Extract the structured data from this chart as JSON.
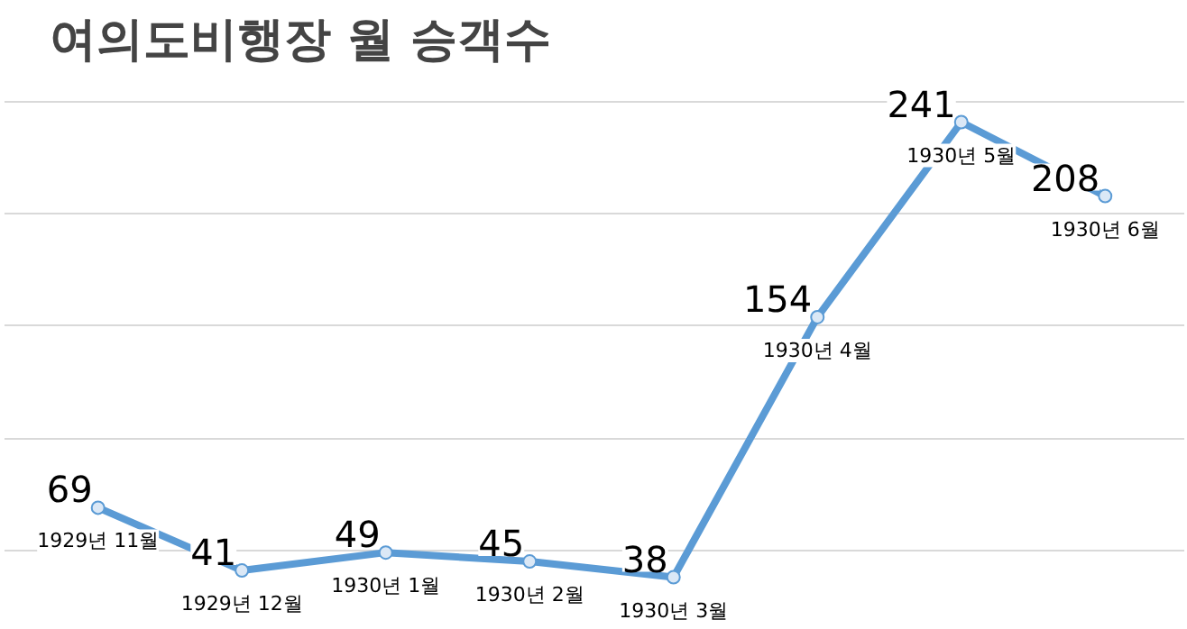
{
  "chart_data": {
    "type": "line",
    "title": "여의도비행장 월 승객수",
    "categories": [
      "1929년 11월",
      "1929년 12월",
      "1930년 1월",
      "1930년 2월",
      "1930년 3월",
      "1930년 4월",
      "1930년 5월",
      "1930년 6월"
    ],
    "series": [
      {
        "color": "#5b9bd5",
        "values": [
          69,
          41,
          49,
          45,
          38,
          154,
          241,
          208
        ]
      }
    ],
    "grid": "y",
    "tick_labels": false,
    "data_labels": true,
    "marker": "circle",
    "line_style": "solid"
  }
}
